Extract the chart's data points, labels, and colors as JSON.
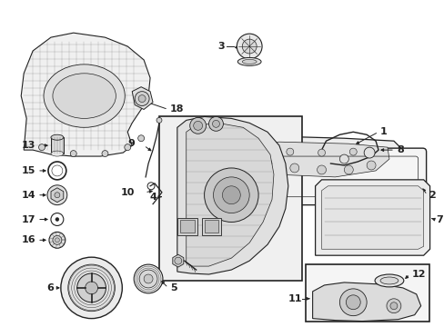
{
  "bg_color": "#ffffff",
  "line_color": "#222222",
  "label_color": "#111111",
  "fig_w": 4.89,
  "fig_h": 3.6,
  "dpi": 100
}
